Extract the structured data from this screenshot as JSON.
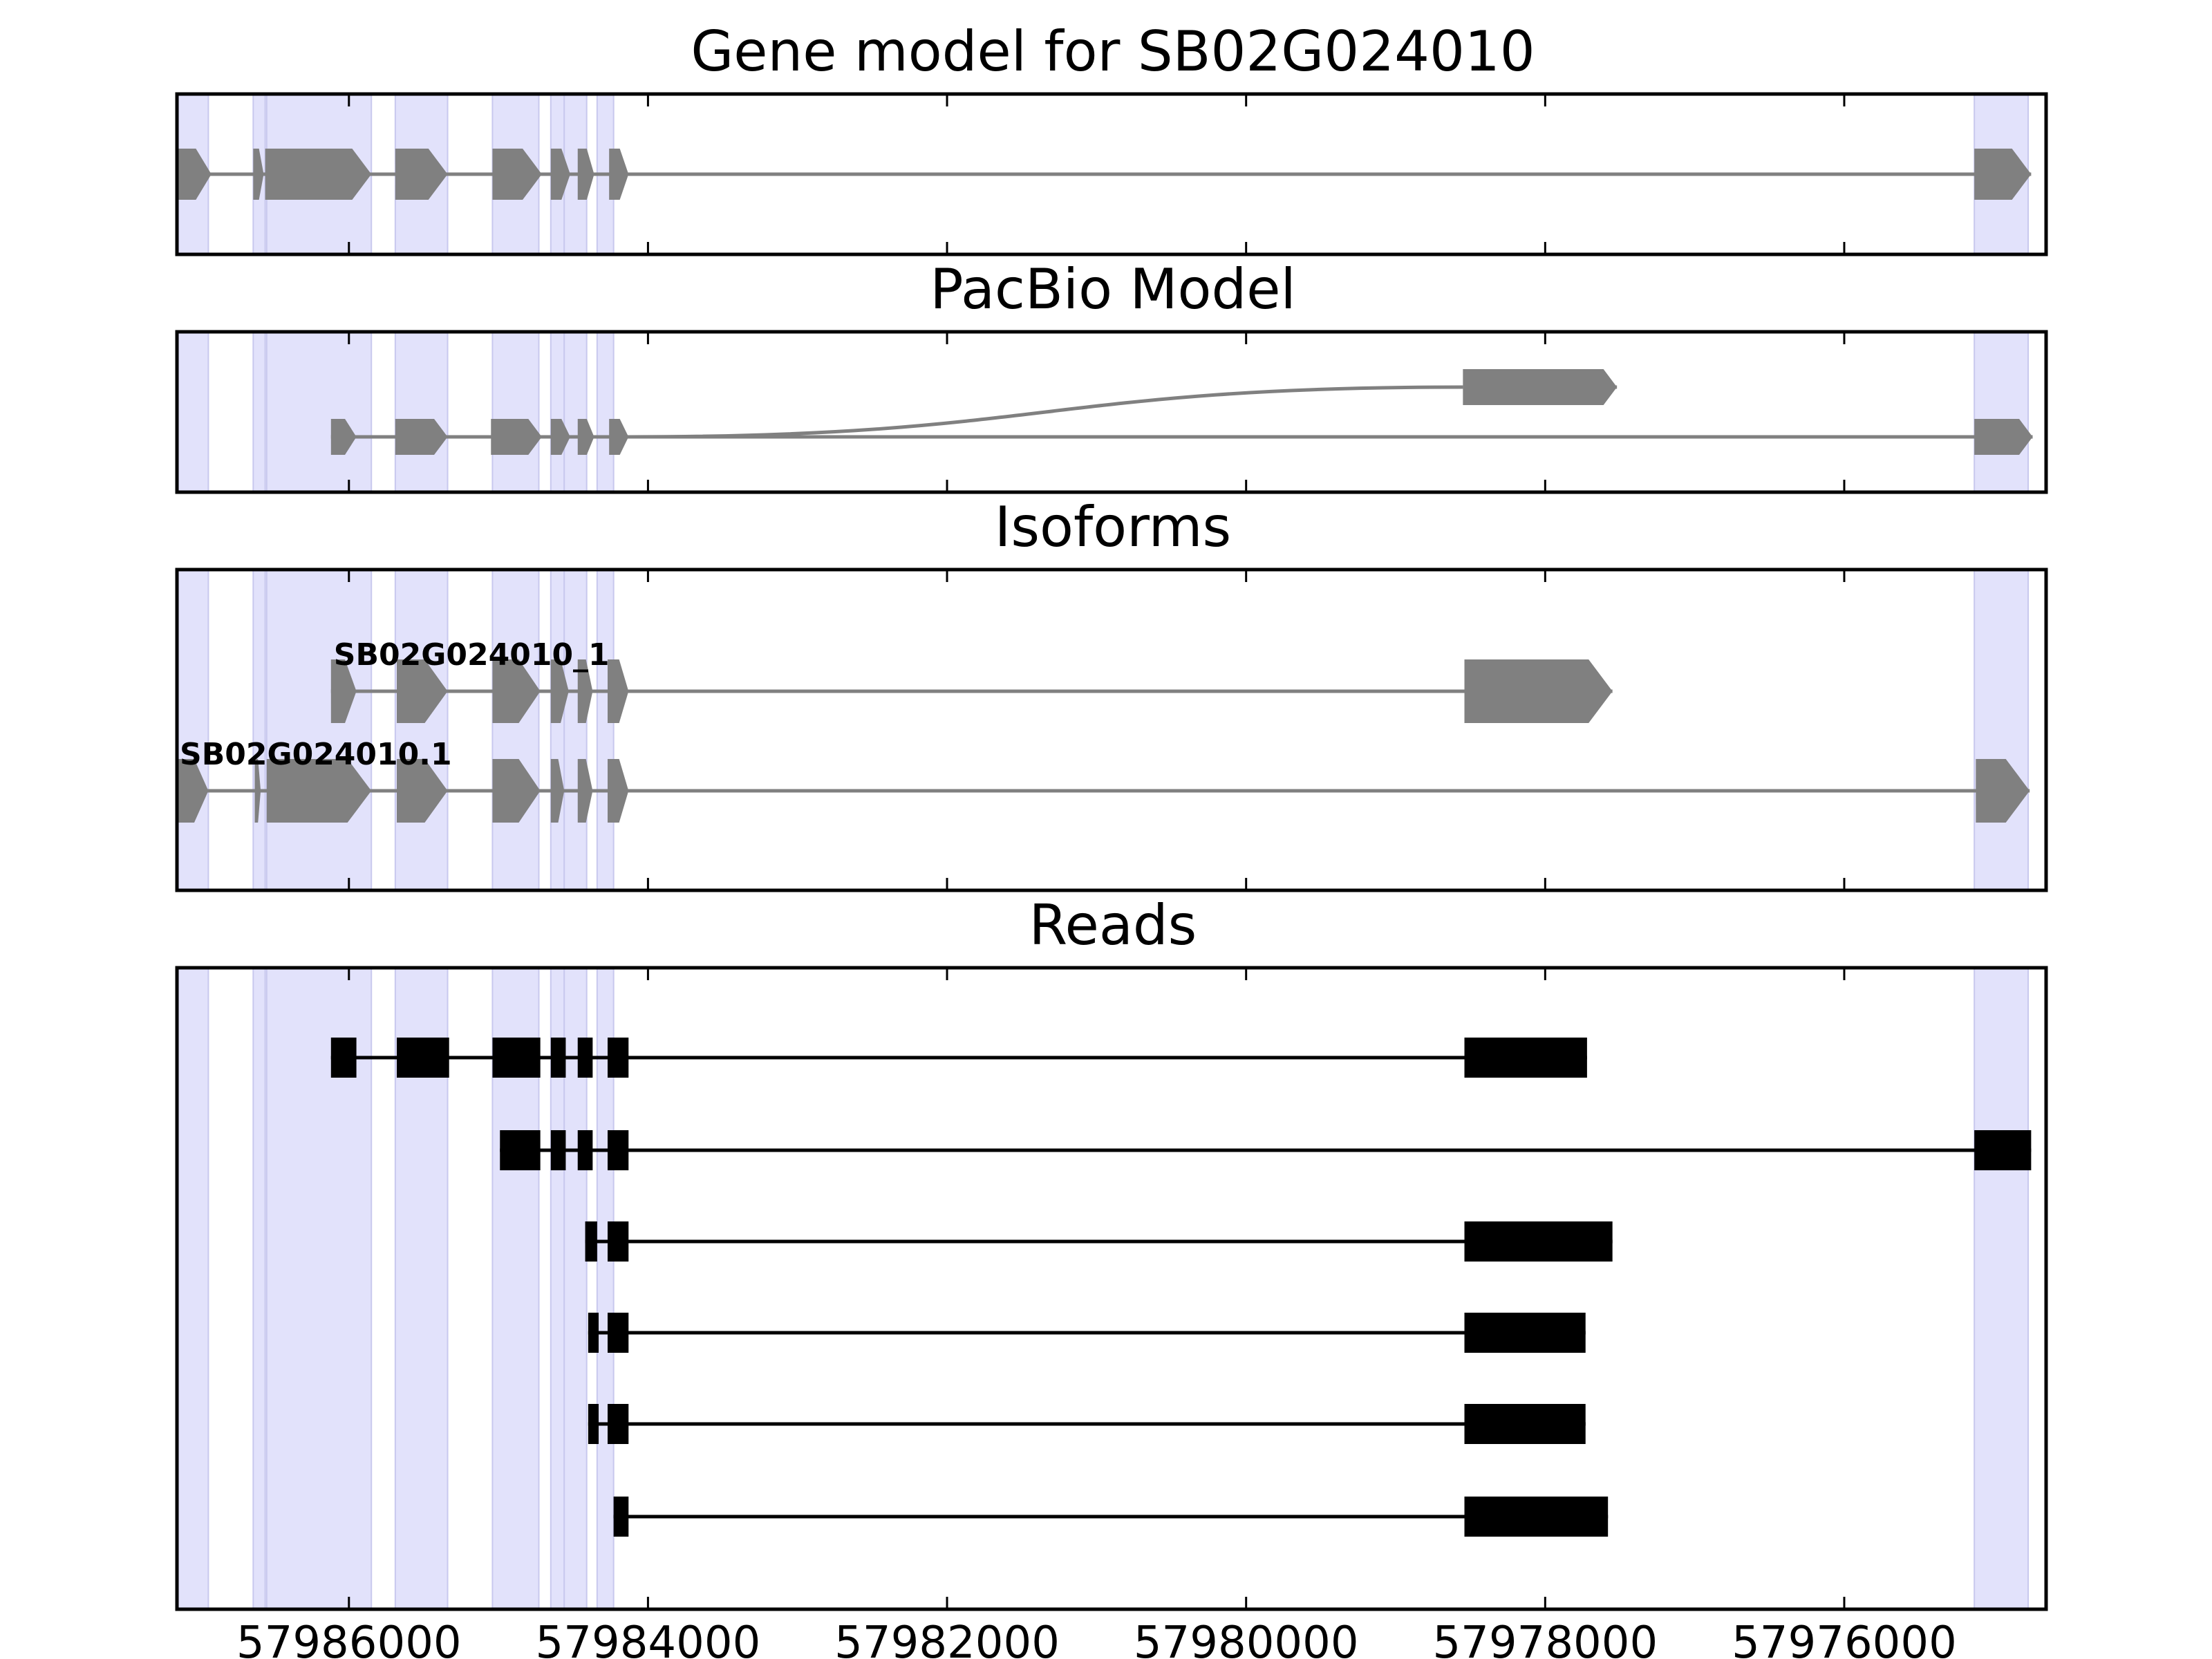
{
  "colors": {
    "shade": "#e2e2fb",
    "shade_edge": "#c8c8ee",
    "model": "#808080",
    "read": "#000000",
    "frame": "#000000",
    "background": "#ffffff"
  },
  "chart_data": {
    "type": "gene-structure",
    "x_axis": {
      "min": 57987150,
      "max": 57974650,
      "reversed": true,
      "ticks": [
        57986000,
        57984000,
        57982000,
        57980000,
        57978000,
        57976000
      ],
      "tick_labels": [
        "57986000",
        "57984000",
        "57982000",
        "57980000",
        "57978000",
        "57976000"
      ]
    },
    "shaded_regions": [
      [
        57987150,
        57986940
      ],
      [
        57986640,
        57986560
      ],
      [
        57986550,
        57985850
      ],
      [
        57985690,
        57985340
      ],
      [
        57985040,
        57984730
      ],
      [
        57984650,
        57984560
      ],
      [
        57984560,
        57984410
      ],
      [
        57984340,
        57984230
      ],
      [
        57975130,
        57974770
      ]
    ],
    "panels": [
      {
        "key": "gene_model",
        "title": "Gene model for SB02G024010",
        "tracks": [
          {
            "label": "",
            "row": 0,
            "exons": [
              [
                57987150,
                57986920
              ],
              [
                57986640,
                57986570
              ],
              [
                57986560,
                57985850
              ],
              [
                57985690,
                57985340
              ],
              [
                57985040,
                57984710
              ],
              [
                57984650,
                57984520
              ],
              [
                57984470,
                57984360
              ],
              [
                57984260,
                57984130
              ],
              [
                57975130,
                57974750
              ]
            ]
          }
        ]
      },
      {
        "key": "pacbio",
        "title": "PacBio Model",
        "tracks": [
          {
            "label": "",
            "row": 0,
            "exons": [
              [
                57978550,
                57977520
              ]
            ]
          },
          {
            "label": "",
            "row": 1,
            "exons": [
              [
                57986120,
                57985950
              ],
              [
                57985690,
                57985340
              ],
              [
                57985050,
                57984710
              ],
              [
                57984650,
                57984520
              ],
              [
                57984470,
                57984360
              ],
              [
                57984260,
                57984130
              ],
              [
                57975130,
                57974740
              ]
            ]
          }
        ],
        "connector": {
          "from": 57984130,
          "to": 57978550
        }
      },
      {
        "key": "isoforms",
        "title": "Isoforms",
        "tracks": [
          {
            "label": "SB02G024010_1",
            "row": 0,
            "exons": [
              [
                57986120,
                57985950
              ],
              [
                57985680,
                57985340
              ],
              [
                57985040,
                57984720
              ],
              [
                57984650,
                57984530
              ],
              [
                57984470,
                57984370
              ],
              [
                57984270,
                57984130
              ],
              [
                57978540,
                57977550
              ]
            ]
          },
          {
            "label": "SB02G024010.1",
            "row": 1,
            "exons": [
              [
                57987150,
                57986940
              ],
              [
                57986630,
                57986590
              ],
              [
                57986550,
                57985850
              ],
              [
                57985680,
                57985340
              ],
              [
                57985040,
                57984720
              ],
              [
                57984650,
                57984560
              ],
              [
                57984470,
                57984370
              ],
              [
                57984270,
                57984130
              ],
              [
                57975120,
                57974760
              ]
            ]
          }
        ]
      },
      {
        "key": "reads",
        "title": "Reads",
        "tracks": [
          {
            "label": "",
            "row": 0,
            "exons": [
              [
                57986120,
                57985950
              ],
              [
                57985680,
                57985330
              ],
              [
                57985040,
                57984720
              ],
              [
                57984650,
                57984550
              ],
              [
                57984470,
                57984370
              ],
              [
                57984270,
                57984130
              ],
              [
                57978540,
                57977720
              ]
            ]
          },
          {
            "label": "",
            "row": 1,
            "exons": [
              [
                57984990,
                57984720
              ],
              [
                57984650,
                57984550
              ],
              [
                57984470,
                57984370
              ],
              [
                57984270,
                57984130
              ],
              [
                57975130,
                57974750
              ]
            ]
          },
          {
            "label": "",
            "row": 2,
            "exons": [
              [
                57984420,
                57984340
              ],
              [
                57984270,
                57984130
              ],
              [
                57978540,
                57977550
              ]
            ]
          },
          {
            "label": "",
            "row": 3,
            "exons": [
              [
                57984400,
                57984330
              ],
              [
                57984270,
                57984130
              ],
              [
                57978540,
                57977730
              ]
            ]
          },
          {
            "label": "",
            "row": 4,
            "exons": [
              [
                57984400,
                57984330
              ],
              [
                57984270,
                57984130
              ],
              [
                57978540,
                57977730
              ]
            ]
          },
          {
            "label": "",
            "row": 5,
            "exons": [
              [
                57984230,
                57984130
              ],
              [
                57978540,
                57977580
              ]
            ]
          }
        ]
      }
    ]
  }
}
